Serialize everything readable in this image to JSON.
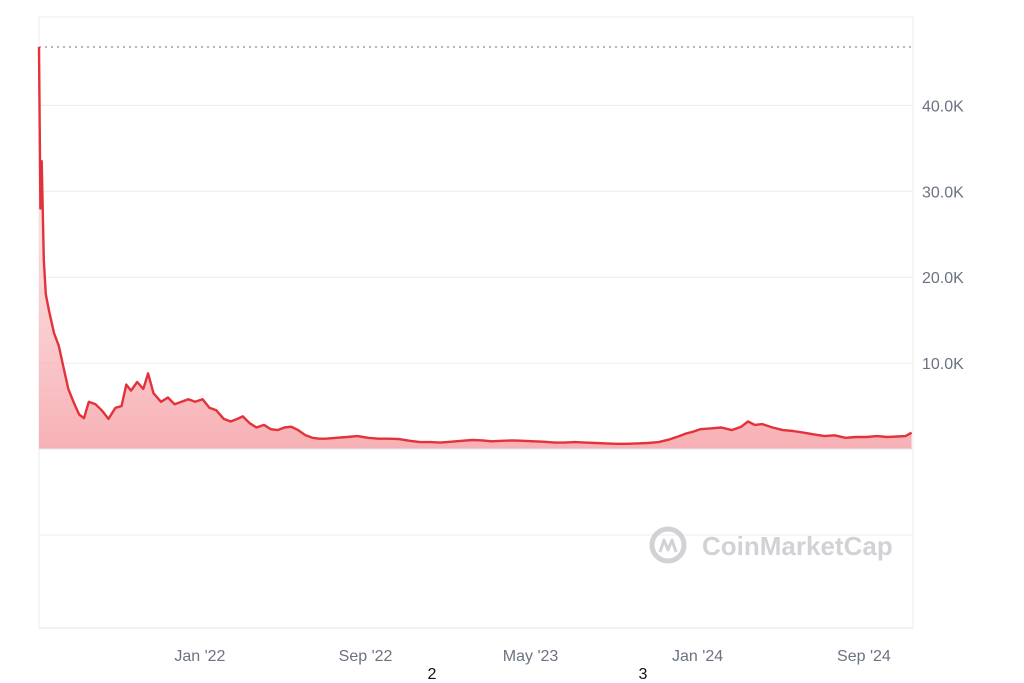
{
  "chart_data": {
    "type": "area",
    "title": "",
    "xlabel": "",
    "ylabel": "",
    "x_range": [
      "2021-05",
      "2024-11"
    ],
    "ylim": [
      0,
      50000
    ],
    "y_ticks": [
      {
        "value": 40000,
        "label": "40.0K"
      },
      {
        "value": 30000,
        "label": "30.0K"
      },
      {
        "value": 20000,
        "label": "20.0K"
      },
      {
        "value": 10000,
        "label": "10.0K"
      }
    ],
    "x_ticks": [
      {
        "value": "2022-01",
        "label": "Jan '22"
      },
      {
        "value": "2022-09",
        "label": "Sep '22"
      },
      {
        "value": "2023-05",
        "label": "May '23"
      },
      {
        "value": "2024-01",
        "label": "Jan '24"
      },
      {
        "value": "2024-09",
        "label": "Sep '24"
      }
    ],
    "max_reference": 46800,
    "grid": true,
    "line_color": "#e3323a",
    "fill_color": "#f8c9cc",
    "series": [
      {
        "values": [
          [
            "2021-05-10",
            46800
          ],
          [
            "2021-05-12",
            28000
          ],
          [
            "2021-05-14",
            33500
          ],
          [
            "2021-05-17",
            22000
          ],
          [
            "2021-05-20",
            18000
          ],
          [
            "2021-05-25",
            16000
          ],
          [
            "2021-06-01",
            13500
          ],
          [
            "2021-06-08",
            12000
          ],
          [
            "2021-06-15",
            9500
          ],
          [
            "2021-06-22",
            7000
          ],
          [
            "2021-07-01",
            5200
          ],
          [
            "2021-07-08",
            4000
          ],
          [
            "2021-07-15",
            3600
          ],
          [
            "2021-07-22",
            5500
          ],
          [
            "2021-08-01",
            5200
          ],
          [
            "2021-08-10",
            4500
          ],
          [
            "2021-08-20",
            3500
          ],
          [
            "2021-08-30",
            4800
          ],
          [
            "2021-09-08",
            5000
          ],
          [
            "2021-09-15",
            7500
          ],
          [
            "2021-09-22",
            6800
          ],
          [
            "2021-10-01",
            7800
          ],
          [
            "2021-10-10",
            7000
          ],
          [
            "2021-10-17",
            8800
          ],
          [
            "2021-10-25",
            6500
          ],
          [
            "2021-11-05",
            5500
          ],
          [
            "2021-11-15",
            6000
          ],
          [
            "2021-11-25",
            5200
          ],
          [
            "2021-12-05",
            5500
          ],
          [
            "2021-12-15",
            5800
          ],
          [
            "2021-12-25",
            5500
          ],
          [
            "2022-01-05",
            5800
          ],
          [
            "2022-01-15",
            4800
          ],
          [
            "2022-01-25",
            4500
          ],
          [
            "2022-02-05",
            3500
          ],
          [
            "2022-02-15",
            3200
          ],
          [
            "2022-02-25",
            3500
          ],
          [
            "2022-03-05",
            3800
          ],
          [
            "2022-03-15",
            3000
          ],
          [
            "2022-03-25",
            2500
          ],
          [
            "2022-04-05",
            2800
          ],
          [
            "2022-04-15",
            2300
          ],
          [
            "2022-04-25",
            2200
          ],
          [
            "2022-05-05",
            2500
          ],
          [
            "2022-05-15",
            2600
          ],
          [
            "2022-05-25",
            2200
          ],
          [
            "2022-06-05",
            1600
          ],
          [
            "2022-06-15",
            1300
          ],
          [
            "2022-06-25",
            1200
          ],
          [
            "2022-07-05",
            1200
          ],
          [
            "2022-07-20",
            1300
          ],
          [
            "2022-08-05",
            1400
          ],
          [
            "2022-08-20",
            1500
          ],
          [
            "2022-09-05",
            1300
          ],
          [
            "2022-09-20",
            1200
          ],
          [
            "2022-10-05",
            1200
          ],
          [
            "2022-10-20",
            1150
          ],
          [
            "2022-11-05",
            950
          ],
          [
            "2022-11-20",
            800
          ],
          [
            "2022-12-05",
            800
          ],
          [
            "2022-12-20",
            750
          ],
          [
            "2023-01-05",
            850
          ],
          [
            "2023-01-20",
            950
          ],
          [
            "2023-02-05",
            1050
          ],
          [
            "2023-02-20",
            1000
          ],
          [
            "2023-03-05",
            900
          ],
          [
            "2023-03-20",
            950
          ],
          [
            "2023-04-05",
            1000
          ],
          [
            "2023-04-20",
            950
          ],
          [
            "2023-05-05",
            900
          ],
          [
            "2023-05-20",
            850
          ],
          [
            "2023-06-05",
            750
          ],
          [
            "2023-06-20",
            750
          ],
          [
            "2023-07-05",
            800
          ],
          [
            "2023-07-20",
            750
          ],
          [
            "2023-08-05",
            700
          ],
          [
            "2023-08-20",
            650
          ],
          [
            "2023-09-05",
            600
          ],
          [
            "2023-09-20",
            600
          ],
          [
            "2023-10-05",
            650
          ],
          [
            "2023-10-20",
            700
          ],
          [
            "2023-11-05",
            800
          ],
          [
            "2023-11-20",
            1100
          ],
          [
            "2023-12-05",
            1500
          ],
          [
            "2023-12-15",
            1800
          ],
          [
            "2023-12-25",
            2000
          ],
          [
            "2024-01-05",
            2300
          ],
          [
            "2024-01-20",
            2400
          ],
          [
            "2024-02-05",
            2500
          ],
          [
            "2024-02-20",
            2200
          ],
          [
            "2024-03-05",
            2600
          ],
          [
            "2024-03-15",
            3200
          ],
          [
            "2024-03-25",
            2800
          ],
          [
            "2024-04-05",
            2900
          ],
          [
            "2024-04-20",
            2500
          ],
          [
            "2024-05-05",
            2200
          ],
          [
            "2024-05-20",
            2100
          ],
          [
            "2024-06-05",
            1900
          ],
          [
            "2024-06-20",
            1700
          ],
          [
            "2024-07-05",
            1500
          ],
          [
            "2024-07-20",
            1600
          ],
          [
            "2024-08-05",
            1300
          ],
          [
            "2024-08-20",
            1400
          ],
          [
            "2024-09-05",
            1400
          ],
          [
            "2024-09-20",
            1500
          ],
          [
            "2024-10-05",
            1400
          ],
          [
            "2024-10-20",
            1450
          ],
          [
            "2024-11-01",
            1500
          ],
          [
            "2024-11-10",
            1900
          ]
        ]
      }
    ]
  },
  "watermark": {
    "text": "CoinMarketCap",
    "icon": "coinmarketcap-logo-icon"
  },
  "footer_labels": [
    "2",
    "3"
  ]
}
